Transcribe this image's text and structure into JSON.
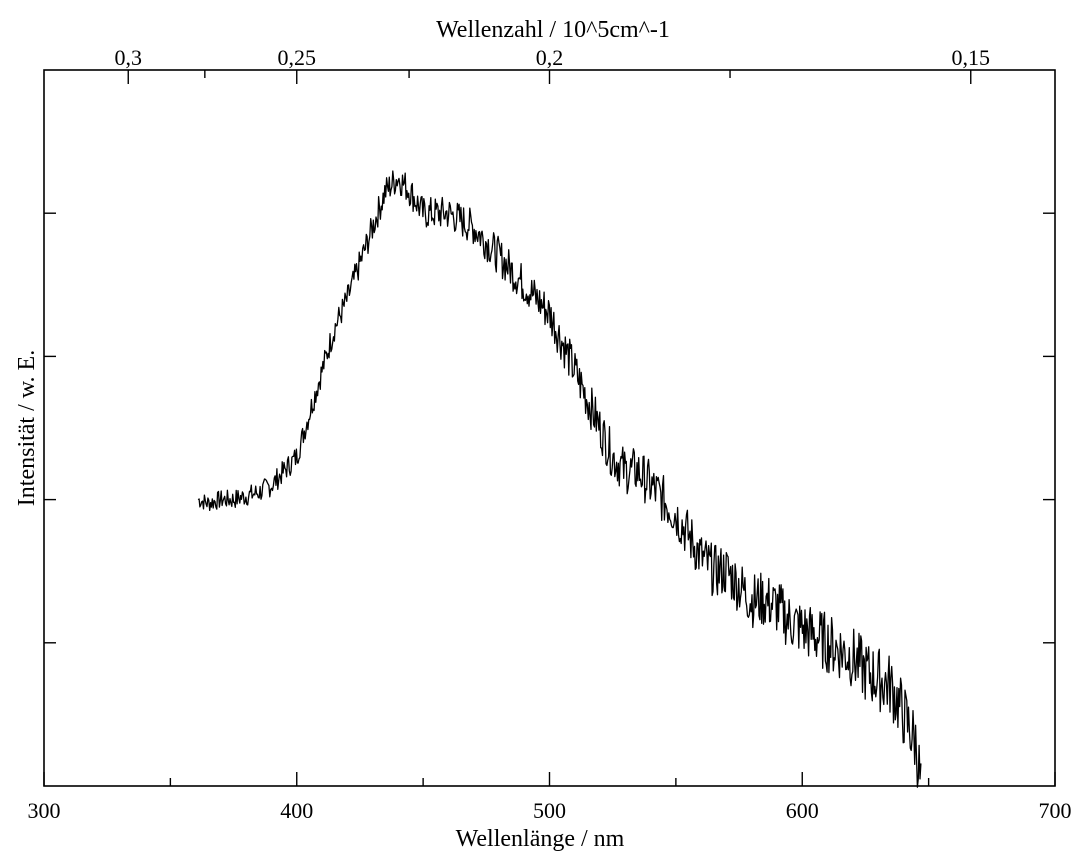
{
  "chart_data": {
    "type": "line",
    "xlabel": "Wellenlänge  /  nm",
    "x2label": "Wellenzahl / 10^5cm^-1",
    "ylabel": "Intensität  /  w. E.",
    "xlim": [
      300,
      700
    ],
    "ylim": [
      0,
      1
    ],
    "x_ticks_major": [
      300,
      400,
      500,
      600,
      700
    ],
    "x_tick_labels": [
      "300",
      "400",
      "500",
      "600",
      "700"
    ],
    "x_ticks_minor": [
      350,
      450,
      550,
      650
    ],
    "x2_ticks_major": [
      0.3,
      0.25,
      0.2,
      0.15
    ],
    "x2_tick_labels": [
      "0,3",
      "0,25",
      "0,2",
      "0,15"
    ],
    "x2_ticks_minor": [
      0.275,
      0.225,
      0.175
    ],
    "y_ticks": [
      0.2,
      0.4,
      0.6,
      0.8
    ],
    "y_tick_labels_shown": false,
    "grid": false,
    "legend": "none",
    "series": [
      {
        "x": [
          361,
          365,
          370,
          375,
          380,
          385,
          390,
          395,
          400,
          405,
          410,
          415,
          420,
          425,
          430,
          435,
          440,
          445,
          450,
          455,
          460,
          465,
          470,
          475,
          480,
          485,
          490,
          495,
          500,
          505,
          510,
          515,
          520,
          525,
          530,
          535,
          540,
          545,
          550,
          555,
          560,
          565,
          570,
          575,
          580,
          585,
          590,
          595,
          600,
          605,
          610,
          615,
          620,
          625,
          630,
          635,
          640,
          645,
          647
        ],
        "y": [
          0.4,
          0.395,
          0.4,
          0.4,
          0.405,
          0.41,
          0.42,
          0.44,
          0.46,
          0.52,
          0.58,
          0.64,
          0.68,
          0.73,
          0.78,
          0.83,
          0.85,
          0.83,
          0.8,
          0.8,
          0.8,
          0.79,
          0.78,
          0.76,
          0.74,
          0.72,
          0.7,
          0.68,
          0.66,
          0.62,
          0.58,
          0.54,
          0.5,
          0.46,
          0.44,
          0.44,
          0.42,
          0.4,
          0.38,
          0.35,
          0.32,
          0.3,
          0.3,
          0.28,
          0.26,
          0.26,
          0.25,
          0.23,
          0.22,
          0.21,
          0.2,
          0.19,
          0.18,
          0.16,
          0.15,
          0.14,
          0.1,
          0.06,
          0.0
        ]
      }
    ]
  }
}
